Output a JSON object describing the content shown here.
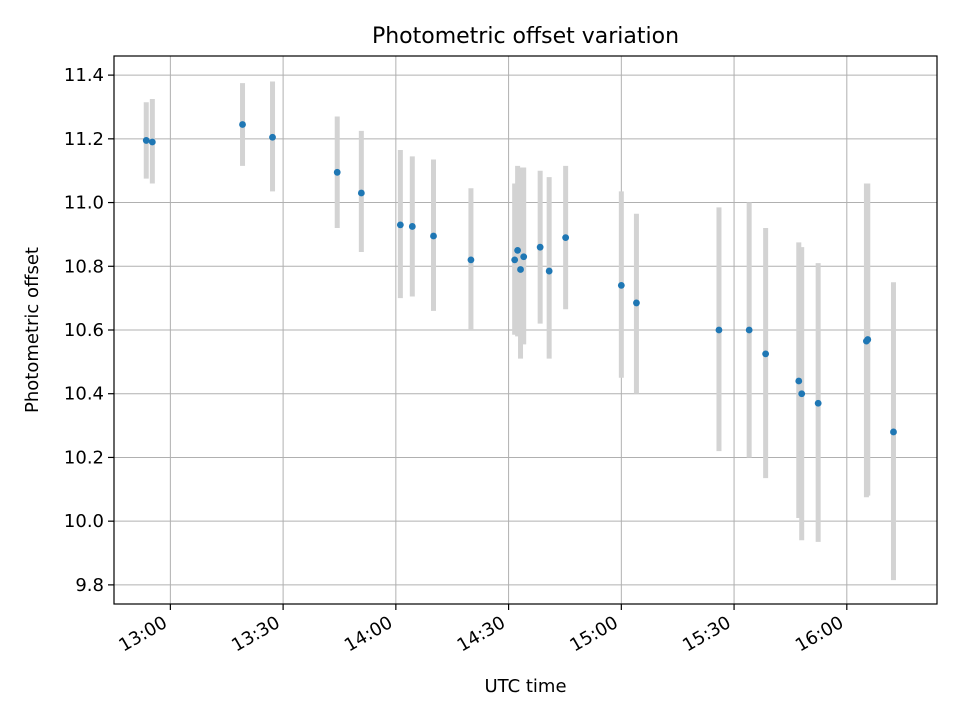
{
  "chart_data": {
    "type": "scatter",
    "title": "Photometric offset variation",
    "xlabel": "UTC time",
    "ylabel": "Photometric offset",
    "xlim": [
      12.75,
      16.4
    ],
    "ylim": [
      9.74,
      11.46
    ],
    "grid": true,
    "x_ticks": [
      {
        "value": 13.0,
        "label": "13:00"
      },
      {
        "value": 13.5,
        "label": "13:30"
      },
      {
        "value": 14.0,
        "label": "14:00"
      },
      {
        "value": 14.5,
        "label": "14:30"
      },
      {
        "value": 15.0,
        "label": "15:00"
      },
      {
        "value": 15.5,
        "label": "15:30"
      },
      {
        "value": 16.0,
        "label": "16:00"
      }
    ],
    "y_ticks": [
      {
        "value": 9.8,
        "label": "9.8"
      },
      {
        "value": 10.0,
        "label": "10.0"
      },
      {
        "value": 10.2,
        "label": "10.2"
      },
      {
        "value": 10.4,
        "label": "10.4"
      },
      {
        "value": 10.6,
        "label": "10.6"
      },
      {
        "value": 10.8,
        "label": "10.8"
      },
      {
        "value": 11.0,
        "label": "11.0"
      },
      {
        "value": 11.2,
        "label": "11.2"
      },
      {
        "value": 11.4,
        "label": "11.4"
      }
    ],
    "colors": {
      "point": "#1f77b4",
      "errorbar": "#d3d3d3",
      "grid": "#b0b0b0",
      "axis": "#000000"
    },
    "series": [
      {
        "name": "Photometric offset",
        "points": [
          {
            "x": 12.893,
            "y": 11.195,
            "ylo": 11.075,
            "yhi": 11.315
          },
          {
            "x": 12.92,
            "y": 11.19,
            "ylo": 11.06,
            "yhi": 11.325
          },
          {
            "x": 13.32,
            "y": 11.245,
            "ylo": 11.115,
            "yhi": 11.375
          },
          {
            "x": 13.453,
            "y": 11.205,
            "ylo": 11.035,
            "yhi": 11.38
          },
          {
            "x": 13.74,
            "y": 11.095,
            "ylo": 10.92,
            "yhi": 11.27
          },
          {
            "x": 13.847,
            "y": 11.03,
            "ylo": 10.845,
            "yhi": 11.225
          },
          {
            "x": 14.02,
            "y": 10.93,
            "ylo": 10.7,
            "yhi": 11.165
          },
          {
            "x": 14.073,
            "y": 10.925,
            "ylo": 10.705,
            "yhi": 11.145
          },
          {
            "x": 14.167,
            "y": 10.895,
            "ylo": 10.66,
            "yhi": 11.135
          },
          {
            "x": 14.333,
            "y": 10.82,
            "ylo": 10.6,
            "yhi": 11.045
          },
          {
            "x": 14.527,
            "y": 10.82,
            "ylo": 10.585,
            "yhi": 11.06
          },
          {
            "x": 14.54,
            "y": 10.85,
            "ylo": 10.58,
            "yhi": 11.115
          },
          {
            "x": 14.553,
            "y": 10.79,
            "ylo": 10.51,
            "yhi": 11.11
          },
          {
            "x": 14.567,
            "y": 10.83,
            "ylo": 10.555,
            "yhi": 11.11
          },
          {
            "x": 14.64,
            "y": 10.86,
            "ylo": 10.62,
            "yhi": 11.1
          },
          {
            "x": 14.68,
            "y": 10.785,
            "ylo": 10.51,
            "yhi": 11.08
          },
          {
            "x": 14.753,
            "y": 10.89,
            "ylo": 10.665,
            "yhi": 11.115
          },
          {
            "x": 15.0,
            "y": 10.74,
            "ylo": 10.45,
            "yhi": 11.035
          },
          {
            "x": 15.067,
            "y": 10.685,
            "ylo": 10.4,
            "yhi": 10.965
          },
          {
            "x": 15.433,
            "y": 10.6,
            "ylo": 10.22,
            "yhi": 10.985
          },
          {
            "x": 15.567,
            "y": 10.6,
            "ylo": 10.2,
            "yhi": 11.0
          },
          {
            "x": 15.64,
            "y": 10.525,
            "ylo": 10.135,
            "yhi": 10.92
          },
          {
            "x": 15.787,
            "y": 10.44,
            "ylo": 10.01,
            "yhi": 10.875
          },
          {
            "x": 15.8,
            "y": 10.4,
            "ylo": 9.94,
            "yhi": 10.86
          },
          {
            "x": 15.873,
            "y": 10.37,
            "ylo": 9.935,
            "yhi": 10.81
          },
          {
            "x": 16.087,
            "y": 10.565,
            "ylo": 10.075,
            "yhi": 11.06
          },
          {
            "x": 16.093,
            "y": 10.57,
            "ylo": 10.08,
            "yhi": 11.06
          },
          {
            "x": 16.207,
            "y": 10.28,
            "ylo": 9.815,
            "yhi": 10.75
          }
        ]
      }
    ]
  }
}
